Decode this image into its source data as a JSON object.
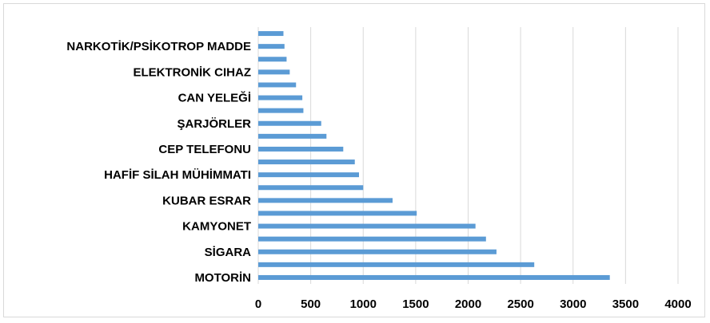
{
  "chart_data": {
    "type": "bar",
    "orientation": "horizontal",
    "categories": [
      "MOTORİN",
      "",
      "SİGARA",
      "",
      "KAMYONET",
      "",
      "KUBAR ESRAR",
      "",
      "HAFİF SİLAH MÜHİMMATI",
      "",
      "CEP TELEFONU",
      "",
      "ŞARJÖRLER",
      "",
      "CAN YELEĞİ",
      "",
      "ELEKTRONİK CIHAZ",
      "",
      "NARKOTİK/PSİKOTROP MADDE",
      ""
    ],
    "values": [
      3350,
      2630,
      2270,
      2170,
      2070,
      1510,
      1280,
      1000,
      960,
      920,
      810,
      650,
      600,
      430,
      420,
      360,
      300,
      270,
      250,
      240
    ],
    "xlim": [
      0,
      4000
    ],
    "xticks": [
      "0",
      "500",
      "1000",
      "1500",
      "2000",
      "2500",
      "3000",
      "3500",
      "4000"
    ],
    "title": "",
    "xlabel": "",
    "ylabel": "",
    "grid": "vertical",
    "legend": "none",
    "bar_color": "#5b9bd5",
    "grid_color": "#d9d9d9"
  }
}
